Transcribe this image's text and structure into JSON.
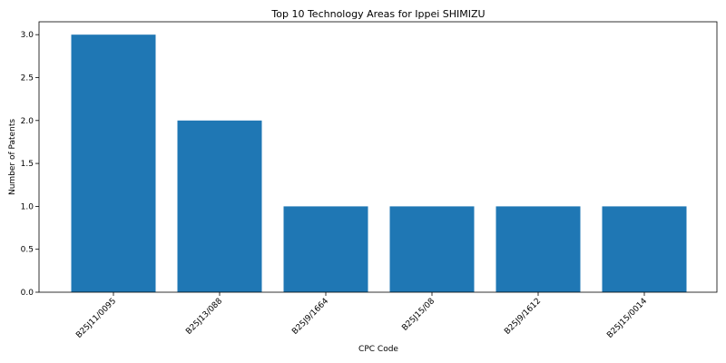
{
  "chart_data": {
    "type": "bar",
    "title": "Top 10 Technology Areas for Ippei SHIMIZU",
    "xlabel": "CPC Code",
    "ylabel": "Number of Patents",
    "categories": [
      "B25J11/0095",
      "B25J13/088",
      "B25J9/1664",
      "B25J15/08",
      "B25J9/1612",
      "B25J15/0014"
    ],
    "values": [
      3,
      2,
      1,
      1,
      1,
      1
    ],
    "ylim": [
      0,
      3.15
    ],
    "yticks": [
      0.0,
      0.5,
      1.0,
      1.5,
      2.0,
      2.5,
      3.0
    ],
    "ytick_labels": [
      "0.0",
      "0.5",
      "1.0",
      "1.5",
      "2.0",
      "2.5",
      "3.0"
    ],
    "bar_color": "#1f77b4",
    "grid": false
  }
}
